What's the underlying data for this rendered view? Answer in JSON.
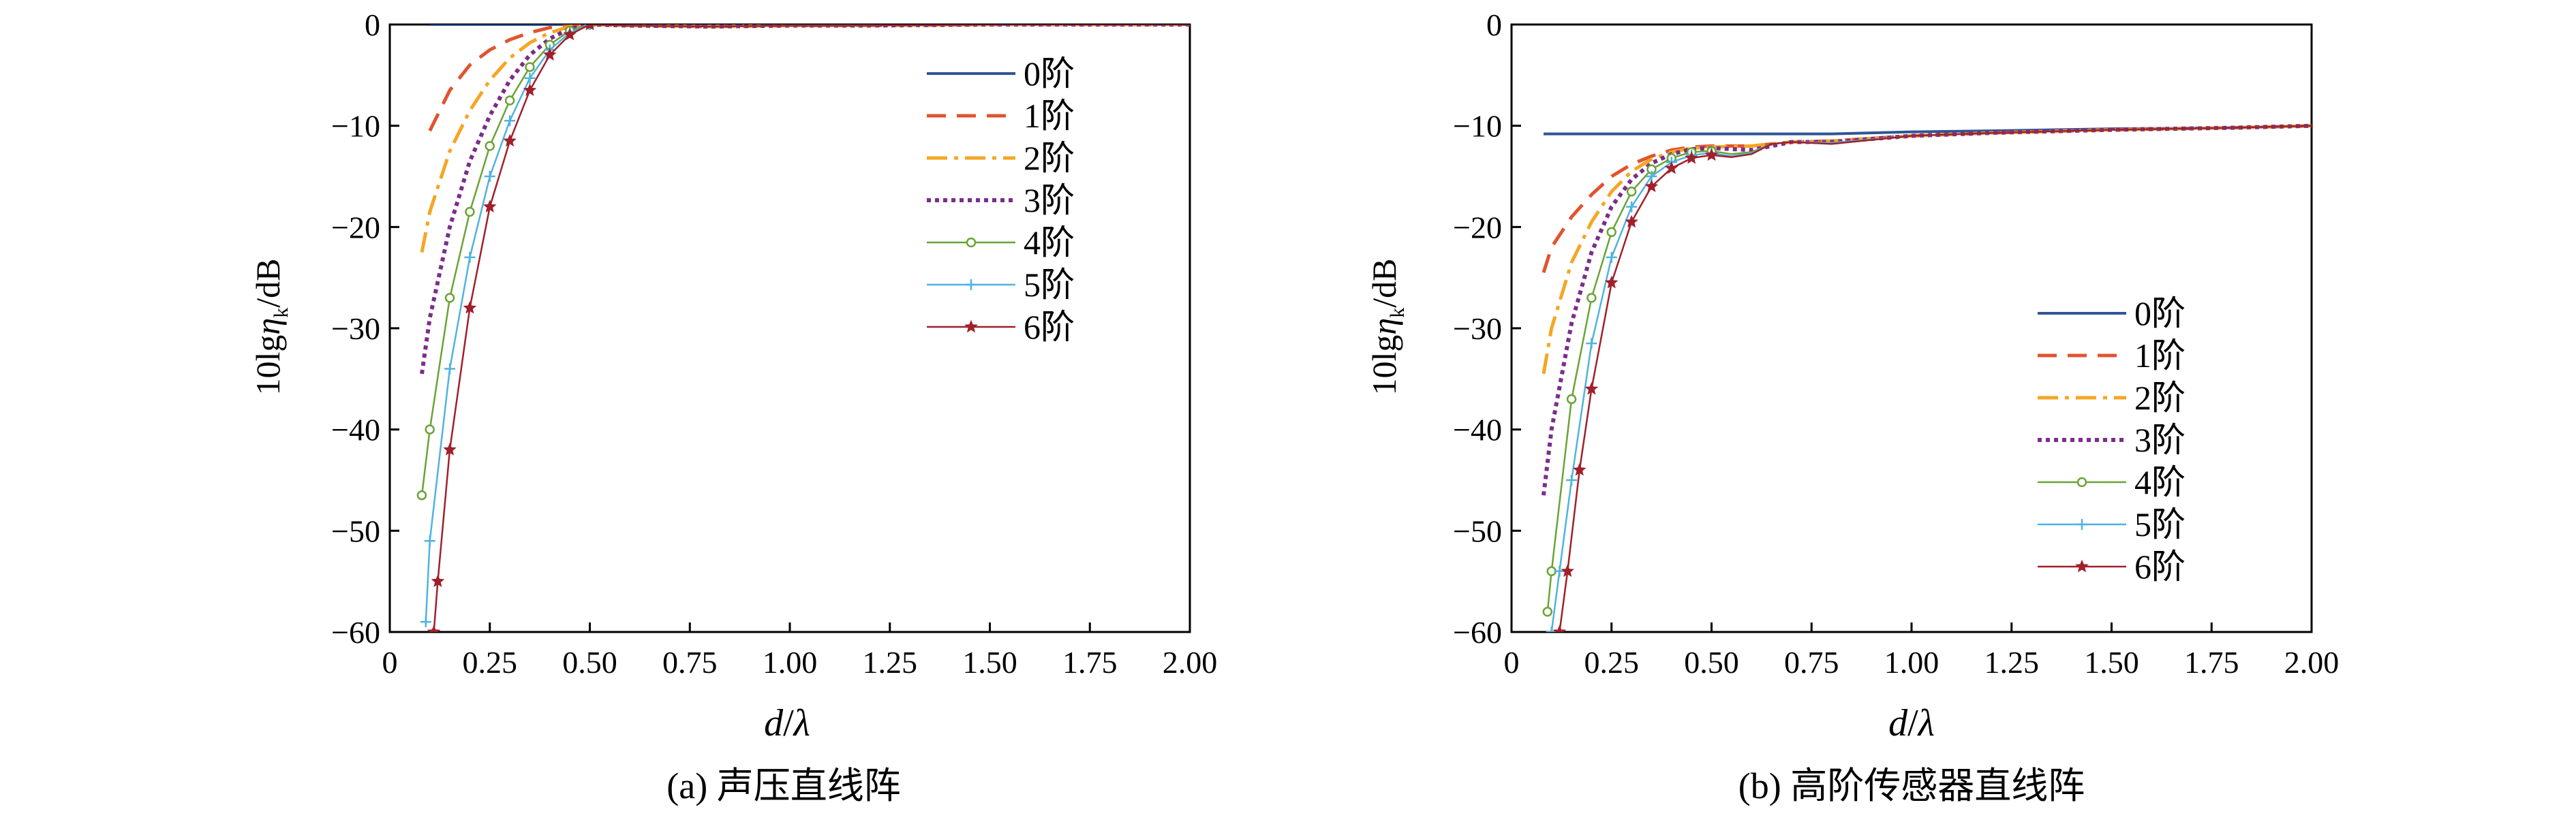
{
  "chart_data": [
    {
      "type": "line",
      "caption": "(a) 声压直线阵",
      "ylabel": "10lgη_k/dB",
      "ylabel_main": "10lg",
      "ylabel_eta": "η",
      "ylabel_sub": "k",
      "ylabel_unit": "/dB",
      "xlabel_d": "d",
      "xlabel_slash": "/",
      "xlabel_lambda": "λ",
      "xlim": [
        0,
        2.0
      ],
      "ylim": [
        -60,
        0
      ],
      "xticks": [
        "0",
        "0.25",
        "0.50",
        "0.75",
        "1.00",
        "1.25",
        "1.50",
        "1.75",
        "2.00"
      ],
      "yticks": [
        "0",
        "−10",
        "−20",
        "−30",
        "−40",
        "−50",
        "−60"
      ],
      "legend_position": "top-right",
      "series": [
        {
          "name": "0阶",
          "color": "#2f5597",
          "style": "solid",
          "marker": "none",
          "x": [
            0.1,
            0.5,
            2.0
          ],
          "y": [
            0,
            0,
            0
          ]
        },
        {
          "name": "1阶",
          "color": "#e0542f",
          "style": "dashed",
          "marker": "none",
          "x": [
            0.1,
            0.15,
            0.2,
            0.25,
            0.3,
            0.35,
            0.4,
            0.45,
            0.5,
            0.6,
            0.8,
            1.0,
            1.2,
            1.5,
            1.8,
            2.0
          ],
          "y": [
            -10.5,
            -6.5,
            -4.0,
            -2.5,
            -1.5,
            -0.8,
            -0.3,
            -0.1,
            0,
            -0.1,
            -0.2,
            -0.1,
            -0.1,
            0,
            0,
            0
          ]
        },
        {
          "name": "2阶",
          "color": "#f5a623",
          "style": "dashdot",
          "marker": "none",
          "x": [
            0.08,
            0.1,
            0.15,
            0.2,
            0.25,
            0.3,
            0.35,
            0.4,
            0.45,
            0.5,
            0.6,
            0.8,
            1.0,
            1.2,
            1.5,
            1.8,
            2.0
          ],
          "y": [
            -22.5,
            -18.5,
            -12.5,
            -8.5,
            -5.5,
            -3.3,
            -1.8,
            -0.8,
            -0.2,
            0,
            -0.1,
            -0.2,
            -0.1,
            -0.1,
            0,
            0,
            0
          ]
        },
        {
          "name": "3阶",
          "color": "#7b2d8b",
          "style": "dotted",
          "marker": "none",
          "x": [
            0.08,
            0.1,
            0.15,
            0.2,
            0.25,
            0.3,
            0.35,
            0.4,
            0.45,
            0.5,
            0.6,
            0.8,
            1.0,
            1.2,
            1.5,
            1.8,
            2.0
          ],
          "y": [
            -34.5,
            -29,
            -20,
            -13.5,
            -9,
            -5.5,
            -3,
            -1.4,
            -0.4,
            0,
            -0.1,
            -0.2,
            -0.1,
            -0.1,
            0,
            0,
            0
          ]
        },
        {
          "name": "4阶",
          "color": "#6aa336",
          "style": "solid",
          "marker": "circle",
          "x": [
            0.08,
            0.1,
            0.15,
            0.2,
            0.25,
            0.3,
            0.35,
            0.4,
            0.45,
            0.5,
            0.6,
            0.8,
            1.0,
            1.2,
            1.5,
            1.8,
            2.0
          ],
          "y": [
            -46.5,
            -40,
            -27,
            -18.5,
            -12,
            -7.5,
            -4.2,
            -2,
            -0.6,
            0,
            -0.1,
            -0.2,
            -0.1,
            -0.1,
            0,
            0,
            0
          ]
        },
        {
          "name": "5阶",
          "color": "#4fb3e0",
          "style": "solid",
          "marker": "plus",
          "x": [
            0.09,
            0.1,
            0.15,
            0.2,
            0.25,
            0.3,
            0.35,
            0.4,
            0.45,
            0.5,
            0.6,
            0.8,
            1.0,
            1.2,
            1.5,
            1.8,
            2.0
          ],
          "y": [
            -59,
            -51,
            -34,
            -23,
            -15,
            -9.5,
            -5.3,
            -2.5,
            -0.8,
            0,
            -0.1,
            -0.2,
            -0.1,
            -0.1,
            0,
            0,
            0
          ]
        },
        {
          "name": "6阶",
          "color": "#a0202b",
          "style": "solid",
          "marker": "star",
          "x": [
            0.11,
            0.12,
            0.15,
            0.2,
            0.25,
            0.3,
            0.35,
            0.4,
            0.45,
            0.5,
            0.6,
            0.8,
            1.0,
            1.2,
            1.5,
            1.8,
            2.0
          ],
          "y": [
            -60,
            -55,
            -42,
            -28,
            -18,
            -11.5,
            -6.5,
            -3,
            -1,
            0,
            -0.1,
            -0.2,
            -0.1,
            -0.1,
            0,
            0,
            0
          ]
        }
      ]
    },
    {
      "type": "line",
      "caption": "(b) 高阶传感器直线阵",
      "ylabel": "10lgη_k/dB",
      "ylabel_main": "10lg",
      "ylabel_eta": "η",
      "ylabel_sub": "k",
      "ylabel_unit": "/dB",
      "xlabel_d": "d",
      "xlabel_slash": "/",
      "xlabel_lambda": "λ",
      "xlim": [
        0,
        2.0
      ],
      "ylim": [
        -60,
        0
      ],
      "xticks": [
        "0",
        "0.25",
        "0.50",
        "0.75",
        "1.00",
        "1.25",
        "1.50",
        "1.75",
        "2.00"
      ],
      "yticks": [
        "0",
        "−10",
        "−20",
        "−30",
        "−40",
        "−50",
        "−60"
      ],
      "legend_position": "bottom-right",
      "series": [
        {
          "name": "0阶",
          "color": "#2f5597",
          "style": "solid",
          "marker": "none",
          "x": [
            0.08,
            0.5,
            0.8,
            1.0,
            1.2,
            1.5,
            1.8,
            2.0
          ],
          "y": [
            -10.8,
            -10.8,
            -10.8,
            -10.6,
            -10.5,
            -10.3,
            -10.2,
            -10.0
          ]
        },
        {
          "name": "1阶",
          "color": "#e0542f",
          "style": "dashed",
          "marker": "none",
          "x": [
            0.08,
            0.1,
            0.15,
            0.2,
            0.25,
            0.3,
            0.35,
            0.4,
            0.45,
            0.5,
            0.6,
            0.7,
            0.8,
            1.0,
            1.2,
            1.5,
            1.8,
            2.0
          ],
          "y": [
            -24.5,
            -22,
            -19,
            -16.8,
            -15,
            -13.8,
            -13,
            -12.4,
            -12.1,
            -12,
            -12,
            -11.6,
            -11.5,
            -11.0,
            -10.7,
            -10.4,
            -10.2,
            -10.0
          ]
        },
        {
          "name": "2阶",
          "color": "#f5a623",
          "style": "dashdot",
          "marker": "none",
          "x": [
            0.08,
            0.1,
            0.15,
            0.2,
            0.25,
            0.3,
            0.35,
            0.4,
            0.45,
            0.5,
            0.6,
            0.7,
            0.8,
            1.0,
            1.2,
            1.5,
            1.8,
            2.0
          ],
          "y": [
            -34.5,
            -30,
            -23.5,
            -19.5,
            -16.5,
            -14.5,
            -13.3,
            -12.6,
            -12.2,
            -12.1,
            -12,
            -11.6,
            -11.5,
            -11.0,
            -10.7,
            -10.4,
            -10.2,
            -10.0
          ]
        },
        {
          "name": "3阶",
          "color": "#7b2d8b",
          "style": "dotted",
          "marker": "none",
          "x": [
            0.08,
            0.1,
            0.15,
            0.2,
            0.25,
            0.3,
            0.35,
            0.4,
            0.45,
            0.5,
            0.6,
            0.7,
            0.8,
            1.0,
            1.2,
            1.5,
            1.8,
            2.0
          ],
          "y": [
            -46.5,
            -40,
            -29.5,
            -22.5,
            -18,
            -15.3,
            -13.7,
            -12.8,
            -12.3,
            -12.2,
            -12.4,
            -11.6,
            -11.6,
            -11.0,
            -10.7,
            -10.4,
            -10.2,
            -10.0
          ]
        },
        {
          "name": "4阶",
          "color": "#6aa336",
          "style": "solid",
          "marker": "circle",
          "x": [
            0.09,
            0.1,
            0.15,
            0.2,
            0.25,
            0.3,
            0.35,
            0.4,
            0.45,
            0.5,
            0.55,
            0.6,
            0.65,
            0.7,
            0.8,
            1.0,
            1.2,
            1.5,
            1.8,
            2.0
          ],
          "y": [
            -58,
            -54,
            -37,
            -27,
            -20.5,
            -16.5,
            -14.3,
            -13.2,
            -12.6,
            -12.5,
            -12.8,
            -12.6,
            -11.8,
            -11.6,
            -11.7,
            -11.0,
            -10.7,
            -10.4,
            -10.2,
            -10.0
          ]
        },
        {
          "name": "5阶",
          "color": "#4fb3e0",
          "style": "solid",
          "marker": "plus",
          "x": [
            0.1,
            0.12,
            0.15,
            0.2,
            0.25,
            0.3,
            0.35,
            0.4,
            0.45,
            0.5,
            0.55,
            0.6,
            0.65,
            0.7,
            0.8,
            1.0,
            1.2,
            1.5,
            1.8,
            2.0
          ],
          "y": [
            -60,
            -54,
            -45,
            -31.5,
            -23,
            -18,
            -15,
            -13.6,
            -12.9,
            -12.7,
            -13,
            -12.7,
            -11.8,
            -11.6,
            -11.7,
            -11.0,
            -10.7,
            -10.4,
            -10.2,
            -10.0
          ]
        },
        {
          "name": "6阶",
          "color": "#a0202b",
          "style": "solid",
          "marker": "star",
          "x": [
            0.12,
            0.14,
            0.17,
            0.2,
            0.25,
            0.3,
            0.35,
            0.4,
            0.45,
            0.5,
            0.55,
            0.6,
            0.65,
            0.7,
            0.8,
            1.0,
            1.2,
            1.5,
            1.8,
            2.0
          ],
          "y": [
            -60,
            -54,
            -44,
            -36,
            -25.5,
            -19.5,
            -16,
            -14.2,
            -13.2,
            -12.9,
            -13.1,
            -12.8,
            -11.8,
            -11.6,
            -11.8,
            -11.0,
            -10.7,
            -10.4,
            -10.2,
            -10.0
          ]
        }
      ]
    }
  ]
}
